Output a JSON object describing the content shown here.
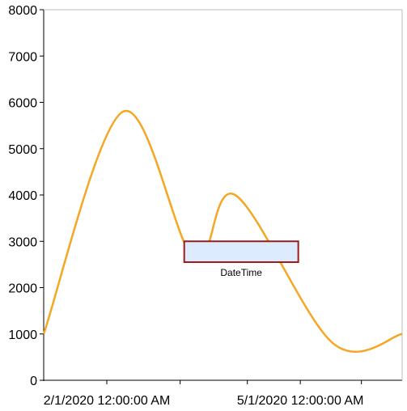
{
  "chart_data": {
    "type": "line",
    "title": "",
    "xlabel": "",
    "ylabel": "",
    "x_axis": {
      "type": "datetime",
      "tick_labels": [
        "2/1/2020 12:00:00 AM",
        "5/1/2020 12:00:00 AM"
      ]
    },
    "ylim": [
      0,
      8000
    ],
    "y_ticks": [
      0,
      1000,
      2000,
      3000,
      4000,
      5000,
      6000,
      7000,
      8000
    ],
    "grid": false,
    "legend": "none",
    "series": [
      {
        "color": "#F5A623",
        "points": [
          {
            "x": "2020-01-01",
            "y": 1000
          },
          {
            "x": "2020-02-09",
            "y": 5800
          },
          {
            "x": "2020-03-15",
            "y": 2600
          },
          {
            "x": "2020-04-04",
            "y": 4000
          },
          {
            "x": "2020-05-22",
            "y": 800
          },
          {
            "x": "2020-06-25",
            "y": 1000
          }
        ]
      }
    ],
    "annotation": {
      "label": "DateTime",
      "x_start": "2020-03-10",
      "x_end": "2020-05-05",
      "y_start": 2550,
      "y_end": 3000,
      "fill": "#DDEBFF",
      "stroke": "#9B1B1B"
    }
  }
}
